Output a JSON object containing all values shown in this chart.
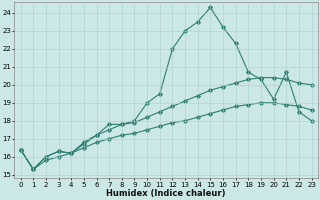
{
  "xlabel": "Humidex (Indice chaleur)",
  "background_color": "#cce8e6",
  "grid_color": "#aacfcc",
  "line_color": "#2e7d72",
  "xlim": [
    -0.5,
    23.5
  ],
  "ylim": [
    14.8,
    24.6
  ],
  "yticks": [
    15,
    16,
    17,
    18,
    19,
    20,
    21,
    22,
    23,
    24
  ],
  "xticks": [
    0,
    1,
    2,
    3,
    4,
    5,
    6,
    7,
    8,
    9,
    10,
    11,
    12,
    13,
    14,
    15,
    16,
    17,
    18,
    19,
    20,
    21,
    22,
    23
  ],
  "line1_x": [
    0,
    1,
    2,
    3,
    4,
    5,
    6,
    7,
    8,
    9,
    10,
    11,
    12,
    13,
    14,
    15,
    16,
    17,
    18,
    19,
    20,
    21,
    22,
    23
  ],
  "line1_y": [
    16.4,
    15.3,
    16.0,
    16.3,
    16.2,
    16.7,
    17.2,
    17.8,
    17.8,
    18.0,
    19.0,
    19.5,
    22.0,
    23.0,
    23.5,
    24.3,
    23.2,
    22.3,
    20.7,
    20.3,
    19.2,
    20.7,
    18.5,
    18.0
  ],
  "line2_x": [
    0,
    1,
    2,
    3,
    4,
    5,
    6,
    7,
    8,
    9,
    10,
    11,
    12,
    13,
    14,
    15,
    16,
    17,
    18,
    19,
    20,
    21,
    22,
    23
  ],
  "line2_y": [
    16.4,
    15.3,
    16.0,
    16.3,
    16.2,
    16.8,
    17.2,
    17.5,
    17.8,
    17.9,
    18.2,
    18.5,
    18.8,
    19.1,
    19.4,
    19.7,
    19.9,
    20.1,
    20.3,
    20.4,
    20.4,
    20.3,
    20.1,
    20.0
  ],
  "line3_x": [
    0,
    1,
    2,
    3,
    4,
    5,
    6,
    7,
    8,
    9,
    10,
    11,
    12,
    13,
    14,
    15,
    16,
    17,
    18,
    19,
    20,
    21,
    22,
    23
  ],
  "line3_y": [
    16.4,
    15.3,
    15.8,
    16.0,
    16.2,
    16.5,
    16.8,
    17.0,
    17.2,
    17.3,
    17.5,
    17.7,
    17.9,
    18.0,
    18.2,
    18.4,
    18.6,
    18.8,
    18.9,
    19.0,
    19.0,
    18.9,
    18.8,
    18.6
  ],
  "tick_fontsize": 5.0,
  "xlabel_fontsize": 6.0,
  "marker_size": 1.8,
  "linewidth": 0.8
}
